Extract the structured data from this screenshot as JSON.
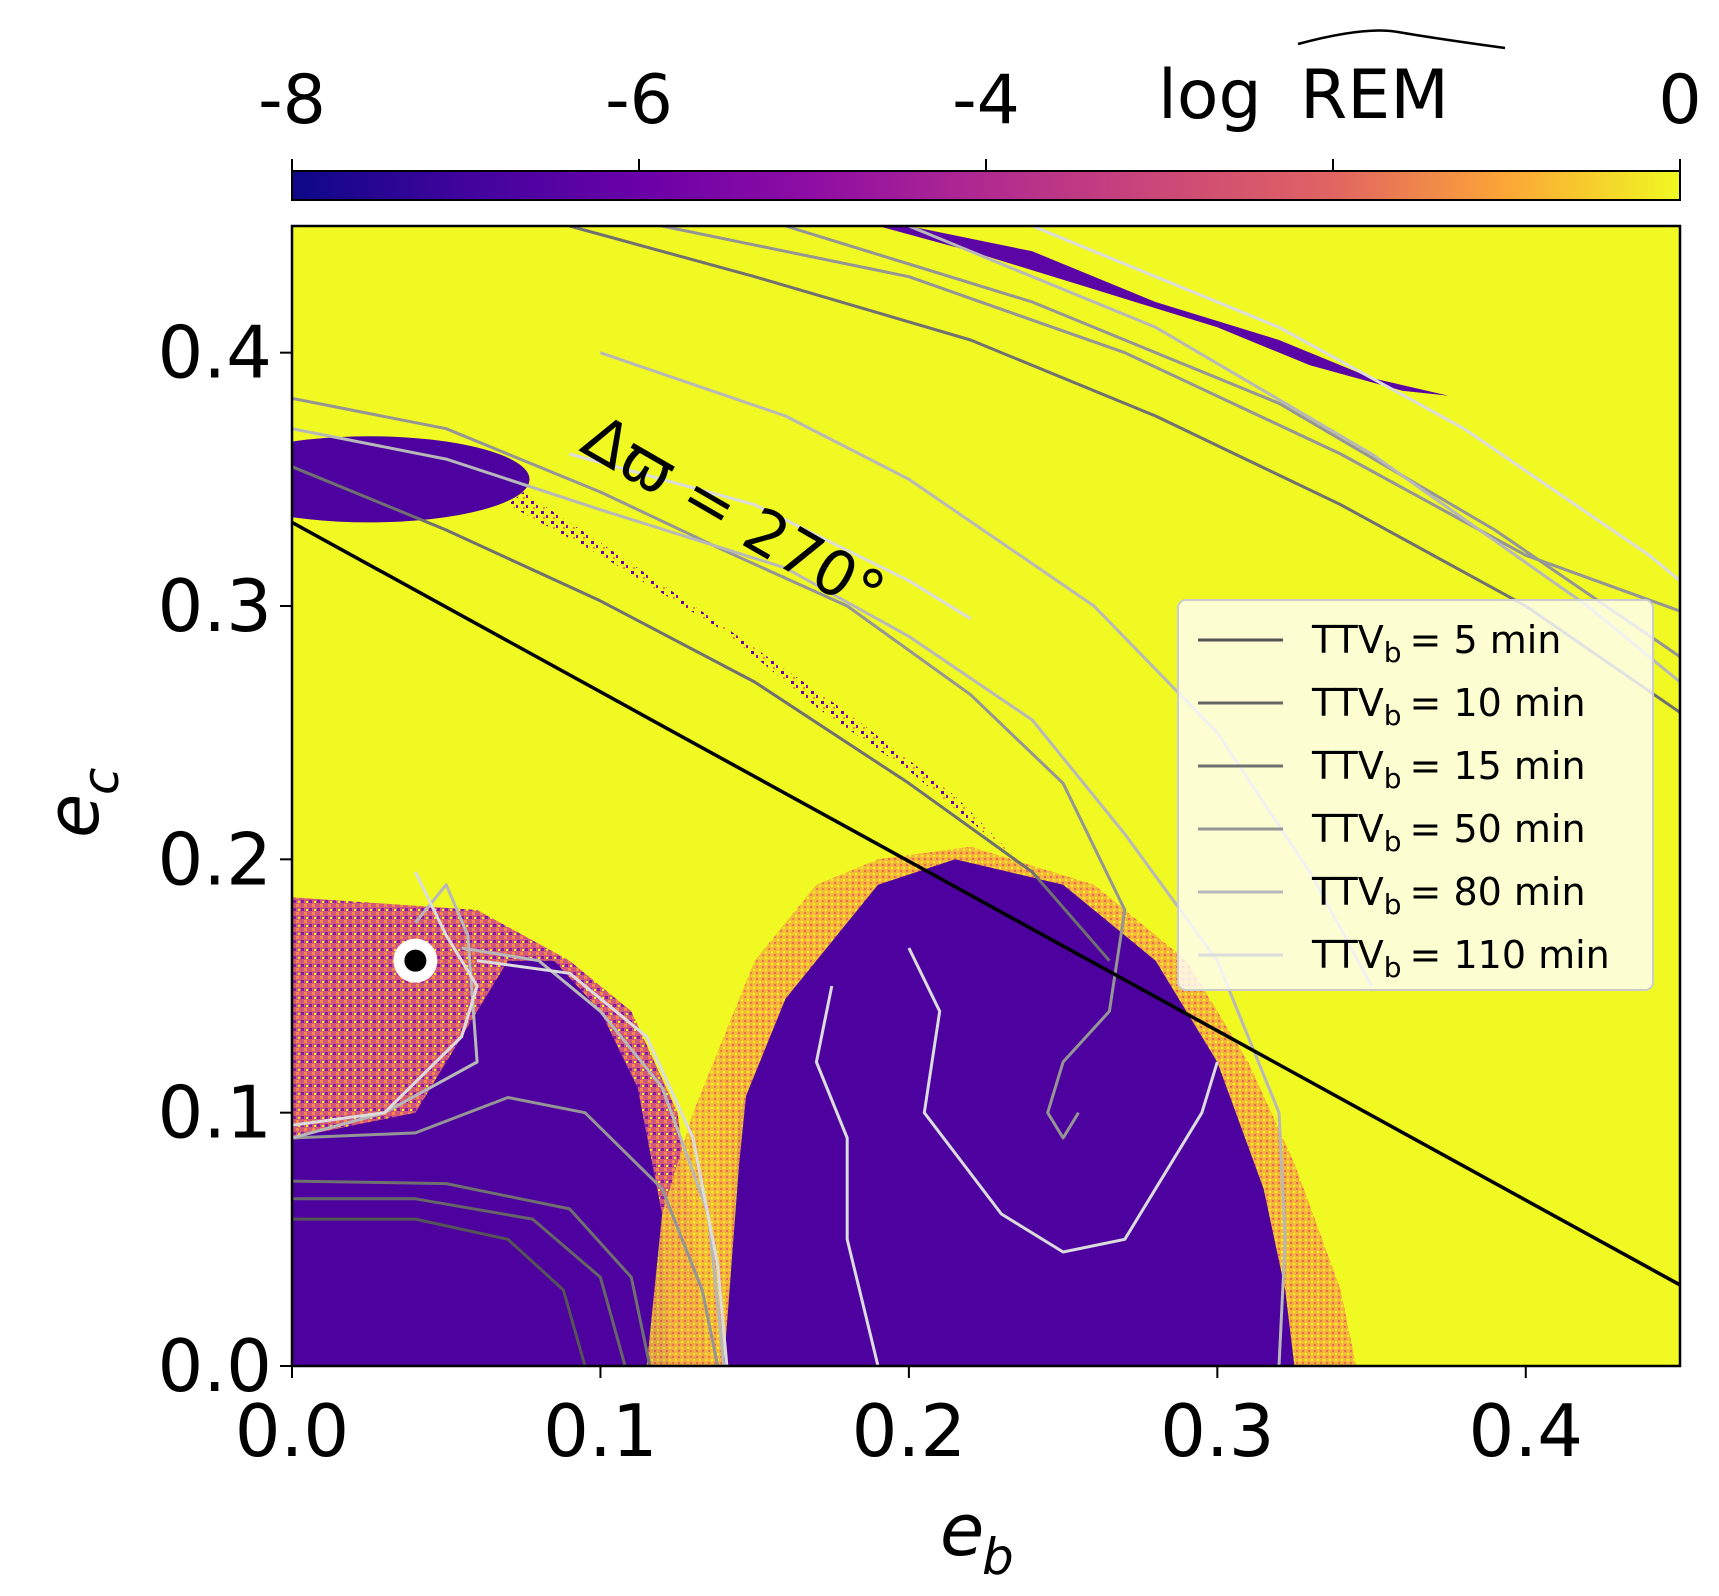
{
  "chart_data": {
    "type": "heatmap",
    "colormap": "plasma",
    "colorbar": {
      "label_prefix": "log",
      "label_main": "REM",
      "ticks": [
        "-8",
        "-6",
        "-4",
        "0"
      ],
      "tick_values": [
        -8,
        -6,
        -4,
        0
      ],
      "range": [
        -8,
        0
      ],
      "placement": "top"
    },
    "xlabel_main": "e",
    "xlabel_sub": "b",
    "ylabel_main": "e",
    "ylabel_sub": "c",
    "xlim": [
      0,
      0.45
    ],
    "ylim": [
      0,
      0.45
    ],
    "xticks": [
      "0.0",
      "0.1",
      "0.2",
      "0.3",
      "0.4"
    ],
    "xtick_values": [
      0.0,
      0.1,
      0.2,
      0.3,
      0.4
    ],
    "yticks": [
      "0.0",
      "0.1",
      "0.2",
      "0.3",
      "0.4"
    ],
    "ytick_values": [
      0.0,
      0.1,
      0.2,
      0.3,
      0.4
    ],
    "annotation": "Δϖ = 270°",
    "reference_line": {
      "points": [
        [
          0.0,
          0.333
        ],
        [
          0.45,
          0.032
        ]
      ],
      "color": "#000000"
    },
    "marker": {
      "x": 0.04,
      "y": 0.16
    },
    "legend": {
      "placement": "center-right",
      "entries": [
        {
          "prefix": "TTV",
          "sub": "b",
          "value": "= 5 min",
          "color": "#555555"
        },
        {
          "prefix": "TTV",
          "sub": "b",
          "value": "= 10 min",
          "color": "#666666"
        },
        {
          "prefix": "TTV",
          "sub": "b",
          "value": "= 15 min",
          "color": "#707070"
        },
        {
          "prefix": "TTV",
          "sub": "b",
          "value": "= 50 min",
          "color": "#959595"
        },
        {
          "prefix": "TTV",
          "sub": "b",
          "value": "= 80 min",
          "color": "#b8b8b8"
        },
        {
          "prefix": "TTV",
          "sub": "b",
          "value": "= 110 min",
          "color": "#dcdcdc"
        }
      ]
    },
    "contours": [
      {
        "level": "5 min",
        "color": "#555555",
        "paths": [
          [
            [
              0.0,
              0.058
            ],
            [
              0.04,
              0.058
            ],
            [
              0.07,
              0.05
            ],
            [
              0.088,
              0.03
            ],
            [
              0.095,
              0.0
            ]
          ]
        ]
      },
      {
        "level": "10 min",
        "color": "#666666",
        "paths": [
          [
            [
              0.0,
              0.066
            ],
            [
              0.04,
              0.066
            ],
            [
              0.078,
              0.058
            ],
            [
              0.1,
              0.035
            ],
            [
              0.108,
              0.0
            ]
          ]
        ]
      },
      {
        "level": "15 min",
        "color": "#707070",
        "paths": [
          [
            [
              0.0,
              0.073
            ],
            [
              0.05,
              0.072
            ],
            [
              0.09,
              0.062
            ],
            [
              0.11,
              0.035
            ],
            [
              0.116,
              0.0
            ]
          ],
          [
            [
              0.0,
              0.355
            ],
            [
              0.05,
              0.33
            ],
            [
              0.1,
              0.302
            ],
            [
              0.15,
              0.27
            ],
            [
              0.2,
              0.23
            ],
            [
              0.24,
              0.195
            ],
            [
              0.265,
              0.16
            ]
          ],
          [
            [
              0.09,
              0.45
            ],
            [
              0.15,
              0.43
            ],
            [
              0.22,
              0.405
            ],
            [
              0.28,
              0.375
            ],
            [
              0.34,
              0.34
            ],
            [
              0.4,
              0.3
            ],
            [
              0.45,
              0.258
            ]
          ]
        ]
      },
      {
        "level": "50 min",
        "color": "#959595",
        "paths": [
          [
            [
              0.0,
              0.09
            ],
            [
              0.04,
              0.092
            ],
            [
              0.07,
              0.106
            ],
            [
              0.095,
              0.1
            ],
            [
              0.12,
              0.07
            ],
            [
              0.133,
              0.03
            ],
            [
              0.138,
              0.0
            ]
          ],
          [
            [
              0.0,
              0.382
            ],
            [
              0.05,
              0.37
            ],
            [
              0.1,
              0.345
            ],
            [
              0.14,
              0.322
            ],
            [
              0.18,
              0.3
            ],
            [
              0.22,
              0.265
            ],
            [
              0.25,
              0.23
            ],
            [
              0.27,
              0.18
            ],
            [
              0.265,
              0.14
            ],
            [
              0.25,
              0.12
            ],
            [
              0.245,
              0.1
            ],
            [
              0.25,
              0.09
            ],
            [
              0.255,
              0.1
            ]
          ],
          [
            [
              0.12,
              0.45
            ],
            [
              0.2,
              0.43
            ],
            [
              0.27,
              0.4
            ],
            [
              0.34,
              0.36
            ],
            [
              0.4,
              0.32
            ],
            [
              0.45,
              0.298
            ]
          ],
          [
            [
              0.16,
              0.45
            ],
            [
              0.24,
              0.42
            ],
            [
              0.32,
              0.38
            ],
            [
              0.39,
              0.33
            ],
            [
              0.45,
              0.28
            ]
          ]
        ]
      },
      {
        "level": "80 min",
        "color": "#b8b8b8",
        "paths": [
          [
            [
              0.04,
              0.175
            ],
            [
              0.05,
              0.19
            ],
            [
              0.057,
              0.17
            ],
            [
              0.06,
              0.12
            ],
            [
              0.03,
              0.1
            ],
            [
              0.0,
              0.09
            ]
          ],
          [
            [
              0.055,
              0.165
            ],
            [
              0.08,
              0.16
            ],
            [
              0.1,
              0.14
            ],
            [
              0.12,
              0.11
            ],
            [
              0.135,
              0.06
            ],
            [
              0.14,
              0.0
            ]
          ],
          [
            [
              0.0,
              0.37
            ],
            [
              0.05,
              0.358
            ],
            [
              0.1,
              0.338
            ],
            [
              0.16,
              0.315
            ],
            [
              0.2,
              0.288
            ],
            [
              0.24,
              0.255
            ],
            [
              0.27,
              0.21
            ],
            [
              0.3,
              0.16
            ],
            [
              0.32,
              0.1
            ],
            [
              0.322,
              0.05
            ],
            [
              0.32,
              0.0
            ]
          ],
          [
            [
              0.1,
              0.4
            ],
            [
              0.16,
              0.375
            ],
            [
              0.2,
              0.35
            ],
            [
              0.26,
              0.3
            ],
            [
              0.3,
              0.25
            ],
            [
              0.33,
              0.195
            ],
            [
              0.35,
              0.15
            ]
          ],
          [
            [
              0.2,
              0.45
            ],
            [
              0.28,
              0.41
            ],
            [
              0.35,
              0.36
            ],
            [
              0.42,
              0.3
            ],
            [
              0.45,
              0.27
            ]
          ]
        ]
      },
      {
        "level": "110 min",
        "color": "#dcdcdc",
        "paths": [
          [
            [
              0.0,
              0.095
            ],
            [
              0.03,
              0.1
            ],
            [
              0.055,
              0.13
            ],
            [
              0.06,
              0.15
            ],
            [
              0.05,
              0.17
            ],
            [
              0.04,
              0.195
            ]
          ],
          [
            [
              0.06,
              0.16
            ],
            [
              0.09,
              0.155
            ],
            [
              0.115,
              0.13
            ],
            [
              0.13,
              0.09
            ],
            [
              0.138,
              0.04
            ],
            [
              0.141,
              0.0
            ]
          ],
          [
            [
              0.175,
              0.15
            ],
            [
              0.17,
              0.12
            ],
            [
              0.18,
              0.09
            ],
            [
              0.18,
              0.05
            ],
            [
              0.19,
              0.0
            ]
          ],
          [
            [
              0.2,
              0.165
            ],
            [
              0.21,
              0.14
            ],
            [
              0.205,
              0.1
            ],
            [
              0.23,
              0.06
            ],
            [
              0.25,
              0.045
            ],
            [
              0.27,
              0.05
            ],
            [
              0.28,
              0.07
            ],
            [
              0.295,
              0.1
            ],
            [
              0.3,
              0.12
            ]
          ],
          [
            [
              0.09,
              0.36
            ],
            [
              0.15,
              0.34
            ],
            [
              0.2,
              0.31
            ],
            [
              0.22,
              0.295
            ]
          ],
          [
            [
              0.24,
              0.45
            ],
            [
              0.32,
              0.41
            ],
            [
              0.38,
              0.37
            ],
            [
              0.44,
              0.32
            ],
            [
              0.45,
              0.31
            ]
          ]
        ]
      }
    ]
  }
}
